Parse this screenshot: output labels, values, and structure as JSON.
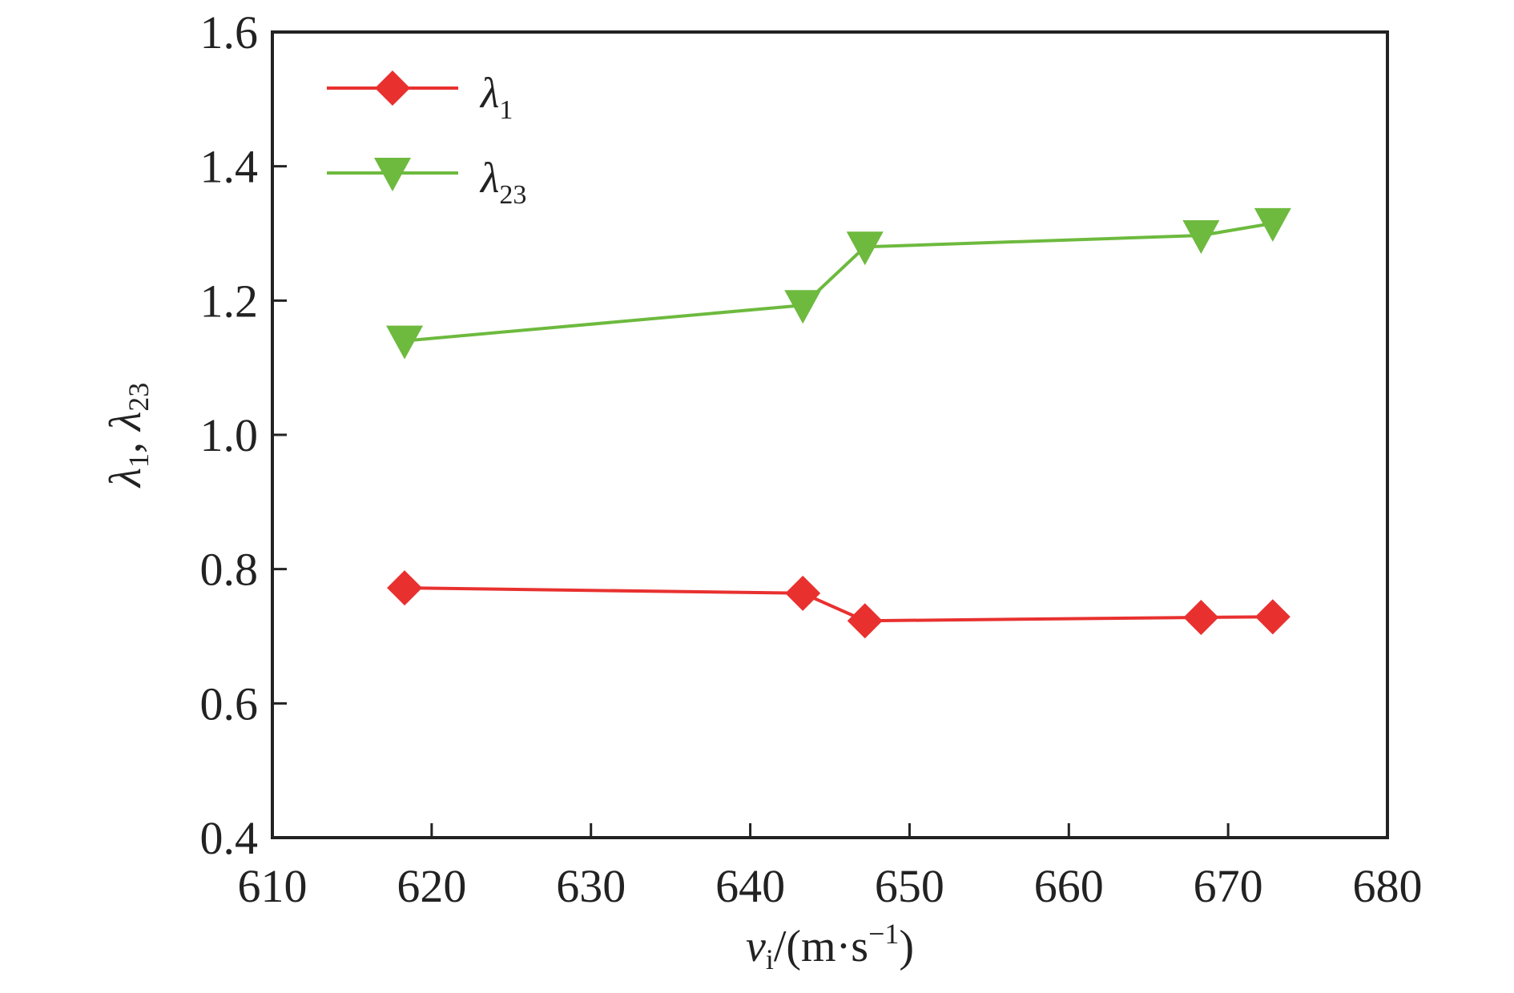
{
  "chart_data": {
    "type": "line",
    "title": "",
    "xlabel": {
      "var": "v",
      "sub": "i",
      "rest": "/(m·s",
      "sup": "−1",
      "close": ")"
    },
    "ylabel": {
      "a": "λ",
      "a_sub": "1",
      "sep": ", ",
      "b": "λ",
      "b_sub": "23"
    },
    "xlim": [
      610,
      680
    ],
    "ylim": [
      0.4,
      1.6
    ],
    "xticks": [
      610,
      620,
      630,
      640,
      650,
      660,
      670,
      680
    ],
    "yticks": [
      0.4,
      0.6,
      0.8,
      1.0,
      1.2,
      1.4,
      1.6
    ],
    "xtick_labels": [
      "610",
      "620",
      "630",
      "640",
      "650",
      "660",
      "670",
      "680"
    ],
    "ytick_labels": [
      "0.4",
      "0.6",
      "0.8",
      "1.0",
      "1.2",
      "1.4",
      "1.6"
    ],
    "grid": false,
    "legend_position": "top-left",
    "series": [
      {
        "name": "λ1",
        "label_main": "λ",
        "label_sub": "1",
        "color": "#e8312f",
        "marker": "diamond",
        "x": [
          618.3,
          643.3,
          647.2,
          668.3,
          672.8
        ],
        "values": [
          0.772,
          0.764,
          0.723,
          0.728,
          0.729
        ]
      },
      {
        "name": "λ23",
        "label_main": "λ",
        "label_sub": "23",
        "color": "#6dba3e",
        "marker": "triangle-down",
        "x": [
          618.3,
          643.3,
          647.2,
          668.3,
          672.8
        ],
        "values": [
          1.14,
          1.193,
          1.28,
          1.297,
          1.315
        ]
      }
    ]
  }
}
